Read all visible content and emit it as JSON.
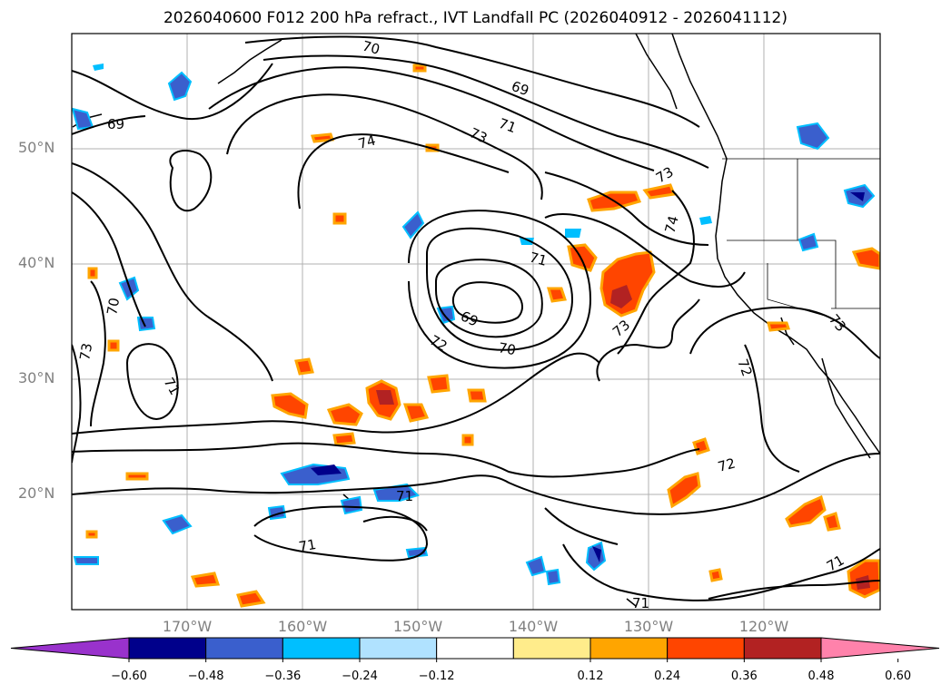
{
  "title": "2026040600 F012 200 hPa refract., IVT Landfall PC (2026040912 - 2026041112)",
  "map": {
    "lat_range": [
      10,
      60
    ],
    "lon_range": [
      -180,
      -110
    ],
    "lat_ticks": [
      {
        "value": 50,
        "label": "50°N"
      },
      {
        "value": 40,
        "label": "40°N"
      },
      {
        "value": 30,
        "label": "30°N"
      },
      {
        "value": 20,
        "label": "20°N"
      }
    ],
    "lon_ticks": [
      {
        "value": -170,
        "label": "170°W"
      },
      {
        "value": -160,
        "label": "160°W"
      },
      {
        "value": -150,
        "label": "150°W"
      },
      {
        "value": -140,
        "label": "140°W"
      },
      {
        "value": -130,
        "label": "130°W"
      },
      {
        "value": -120,
        "label": "120°W"
      }
    ],
    "grid": true,
    "contour_color": "#000000",
    "contour_labels": [
      "69",
      "69",
      "69",
      "70",
      "70",
      "70",
      "71",
      "71",
      "71",
      "71",
      "71",
      "71",
      "71",
      "72",
      "72",
      "72",
      "73",
      "73",
      "73",
      "73",
      "73",
      "74",
      "74"
    ]
  },
  "colorbar": {
    "colors": [
      "#9932cc",
      "#00008b",
      "#3a5fcd",
      "#00bfff",
      "#b0e2ff",
      "#ffffff",
      "#ffec8b",
      "#ffa500",
      "#ff4500",
      "#b22222",
      "#ff82ab"
    ],
    "ticks": [
      "−0.60",
      "−0.48",
      "−0.36",
      "−0.24",
      "−0.12",
      "0.12",
      "0.24",
      "0.36",
      "0.48",
      "0.60"
    ],
    "extend": "both"
  }
}
